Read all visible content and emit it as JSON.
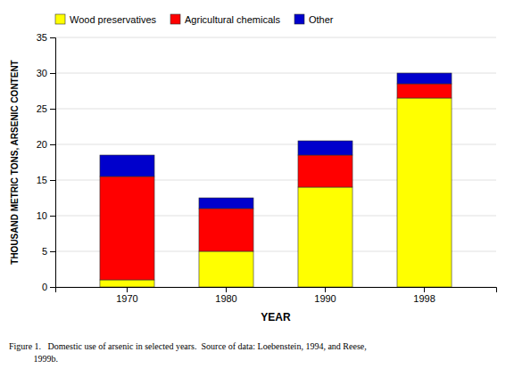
{
  "chart_data": {
    "type": "bar",
    "stacked": true,
    "categories": [
      "1970",
      "1980",
      "1990",
      "1998"
    ],
    "series": [
      {
        "name": "Wood preservatives",
        "color": "#FFFF00",
        "values": [
          1.0,
          5.0,
          14.0,
          26.5
        ]
      },
      {
        "name": "Agricultural chemicals",
        "color": "#FF0000",
        "values": [
          14.5,
          6.0,
          4.5,
          2.0
        ]
      },
      {
        "name": "Other",
        "color": "#0000CC",
        "values": [
          3.0,
          1.5,
          2.0,
          1.5
        ]
      }
    ],
    "x_label": "YEAR",
    "y_label": "THOUSAND METRIC TONS, ARSENIC CONTENT",
    "ylim": [
      0,
      35
    ],
    "yticks": [
      0,
      5,
      10,
      15,
      20,
      25,
      30,
      35
    ],
    "grid": true,
    "legend": "upper left",
    "annotations": [
      "Figure 1.   Domestic use of arsenic in selected years.  Source of data: Loebenstein, 1994, and Reese,",
      "           1999b."
    ]
  }
}
